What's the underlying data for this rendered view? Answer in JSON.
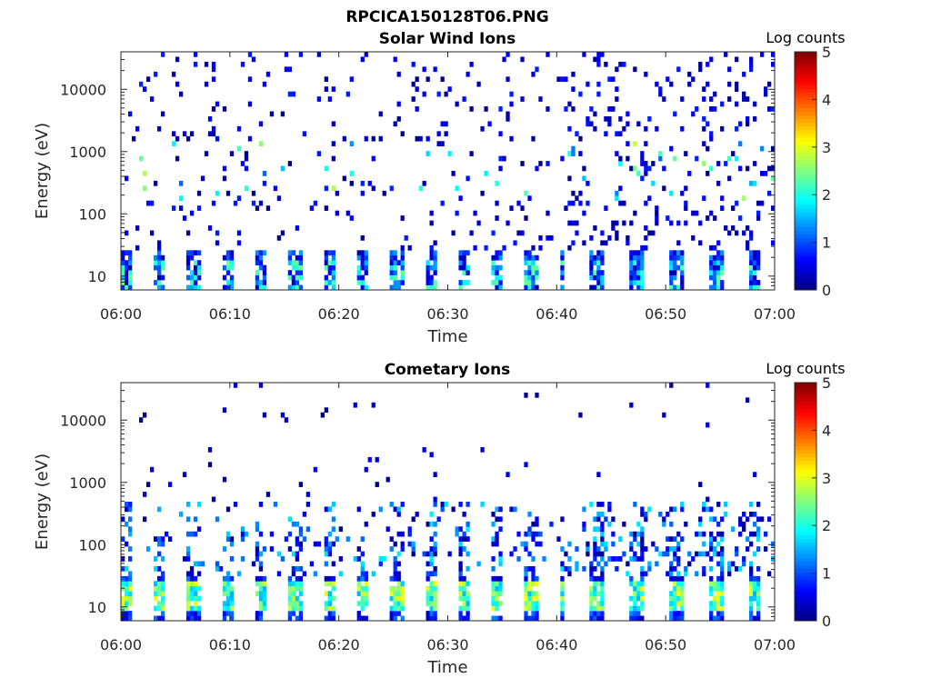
{
  "figure": {
    "title": "RPCICA150128T06.PNG"
  },
  "chart_data": [
    {
      "type": "heatmap",
      "title": "Solar Wind Ions",
      "xlabel": "Time",
      "ylabel": "Energy (eV)",
      "x_ticks": [
        "06:00",
        "06:10",
        "06:20",
        "06:30",
        "06:40",
        "06:50",
        "07:00"
      ],
      "x_range": [
        "06:00",
        "07:00"
      ],
      "y_scale": "log",
      "y_ticks": [
        "10",
        "100",
        "1000",
        "10000"
      ],
      "y_range": [
        6,
        40000
      ],
      "colorbar": {
        "label": "Log counts",
        "ticks": [
          "0",
          "1",
          "2",
          "3",
          "4",
          "5"
        ],
        "range": [
          0,
          5
        ],
        "colormap": "jet"
      },
      "background_color": "#ffffff",
      "description_cells": "sparse scattered counts 30-40000 eV, dense low-energy bands below 30 eV at roughly 3-minute intervals; values mostly 0-2.5 log counts"
    },
    {
      "type": "heatmap",
      "title": "Cometary Ions",
      "xlabel": "Time",
      "ylabel": "Energy (eV)",
      "x_ticks": [
        "06:00",
        "06:10",
        "06:20",
        "06:30",
        "06:40",
        "06:50",
        "07:00"
      ],
      "x_range": [
        "06:00",
        "07:00"
      ],
      "y_scale": "log",
      "y_ticks": [
        "10",
        "100",
        "1000",
        "10000"
      ],
      "y_range": [
        6,
        40000
      ],
      "colorbar": {
        "label": "Log counts",
        "ticks": [
          "0",
          "1",
          "2",
          "3",
          "4",
          "5"
        ],
        "range": [
          0,
          5
        ],
        "colormap": "jet"
      },
      "background_color": "#ffffff",
      "description_cells": "periodic vertical streaks 6-400 eV every ~3 minutes, peak ~3 log counts near 10-25 eV; sparse points above 1000 eV"
    }
  ]
}
